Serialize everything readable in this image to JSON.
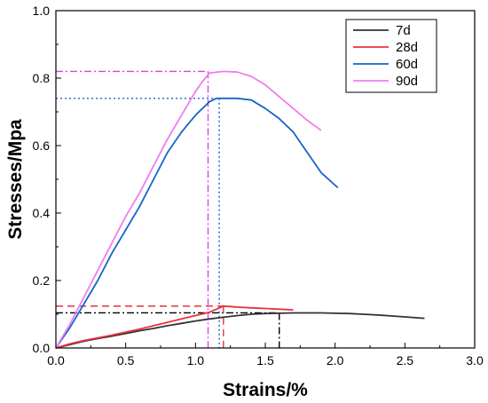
{
  "chart_data": {
    "type": "line",
    "xlabel": "Strains/%",
    "ylabel": "Stresses/Mpa",
    "xlim": [
      0,
      3.0
    ],
    "ylim": [
      0,
      1.0
    ],
    "xticks": [
      "0.0",
      "0.5",
      "1.0",
      "1.5",
      "2.0",
      "2.5",
      "3.0"
    ],
    "yticks": [
      "0.0",
      "0.2",
      "0.4",
      "0.6",
      "0.8",
      "1.0"
    ],
    "legend_position": "top-right",
    "grid": false,
    "series": [
      {
        "name": "7d",
        "color": "#333333",
        "x": [
          0,
          0.1,
          0.2,
          0.3,
          0.4,
          0.5,
          0.6,
          0.7,
          0.8,
          0.9,
          1.0,
          1.1,
          1.2,
          1.3,
          1.4,
          1.5,
          1.6,
          1.7,
          1.8,
          1.9,
          2.0,
          2.1,
          2.2,
          2.3,
          2.4,
          2.5,
          2.64
        ],
        "y": [
          0,
          0.01,
          0.02,
          0.028,
          0.035,
          0.043,
          0.051,
          0.058,
          0.066,
          0.073,
          0.08,
          0.086,
          0.091,
          0.096,
          0.1,
          0.102,
          0.103,
          0.104,
          0.104,
          0.104,
          0.103,
          0.102,
          0.1,
          0.098,
          0.095,
          0.092,
          0.088
        ]
      },
      {
        "name": "28d",
        "color": "#e8323c",
        "x": [
          0,
          0.1,
          0.2,
          0.3,
          0.4,
          0.5,
          0.6,
          0.7,
          0.8,
          0.9,
          1.0,
          1.1,
          1.15,
          1.2,
          1.25,
          1.3,
          1.4,
          1.5,
          1.6,
          1.7
        ],
        "y": [
          0,
          0.012,
          0.022,
          0.03,
          0.038,
          0.047,
          0.056,
          0.066,
          0.076,
          0.086,
          0.096,
          0.106,
          0.115,
          0.124,
          0.123,
          0.121,
          0.119,
          0.117,
          0.115,
          0.113
        ]
      },
      {
        "name": "60d",
        "color": "#1565c8",
        "x": [
          0,
          0.1,
          0.2,
          0.3,
          0.4,
          0.5,
          0.6,
          0.7,
          0.8,
          0.9,
          1.0,
          1.05,
          1.1,
          1.15,
          1.2,
          1.3,
          1.4,
          1.5,
          1.6,
          1.7,
          1.75,
          1.8,
          1.9,
          2.02
        ],
        "y": [
          0,
          0.06,
          0.13,
          0.2,
          0.28,
          0.35,
          0.42,
          0.5,
          0.58,
          0.64,
          0.69,
          0.71,
          0.73,
          0.74,
          0.74,
          0.74,
          0.735,
          0.71,
          0.68,
          0.64,
          0.61,
          0.58,
          0.52,
          0.475
        ]
      },
      {
        "name": "90d",
        "color": "#f07cf0",
        "x": [
          0,
          0.1,
          0.2,
          0.3,
          0.4,
          0.5,
          0.6,
          0.7,
          0.8,
          0.9,
          1.0,
          1.05,
          1.1,
          1.2,
          1.3,
          1.4,
          1.5,
          1.6,
          1.7,
          1.8,
          1.9
        ],
        "y": [
          0,
          0.07,
          0.15,
          0.23,
          0.31,
          0.39,
          0.46,
          0.54,
          0.62,
          0.69,
          0.76,
          0.79,
          0.815,
          0.82,
          0.818,
          0.805,
          0.78,
          0.745,
          0.71,
          0.675,
          0.645
        ]
      }
    ],
    "annotations": [
      {
        "series": "7d",
        "color": "#000000",
        "dash": "dashdot",
        "x": 1.6,
        "y": 0.104
      },
      {
        "series": "28d",
        "color": "#e8323c",
        "dash": "dash",
        "x": 1.2,
        "y": 0.124
      },
      {
        "series": "60d",
        "color": "#1565c8",
        "dash": "dot",
        "x": 1.17,
        "y": 0.74
      },
      {
        "series": "90d",
        "color": "#e040e0",
        "dash": "dashdot",
        "x": 1.09,
        "y": 0.82
      }
    ]
  }
}
